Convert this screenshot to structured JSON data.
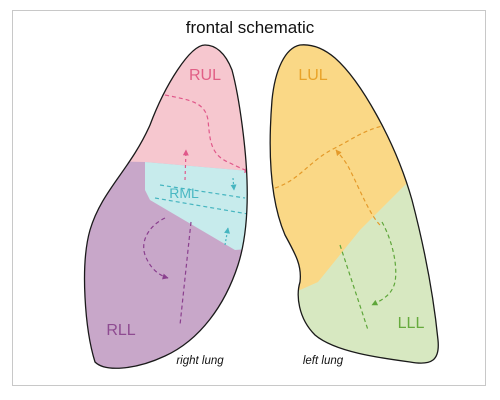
{
  "title": "frontal schematic",
  "lobes": {
    "rul": {
      "label": "RUL",
      "fill": "#f6c7cf",
      "text_color": "#e15f86",
      "arrow_color": "#e0588a"
    },
    "rml": {
      "label": "RML",
      "fill": "#c7ebec",
      "text_color": "#4ab8c3",
      "arrow_color": "#46b5c0"
    },
    "rll": {
      "label": "RLL",
      "fill": "#c8a7c9",
      "text_color": "#8e4b91",
      "arrow_color": "#8a3f8e"
    },
    "lul": {
      "label": "LUL",
      "fill": "#fad886",
      "text_color": "#e8a32a",
      "arrow_color": "#e49a2a"
    },
    "lll": {
      "label": "LLL",
      "fill": "#d7e8c1",
      "text_color": "#66aa3d",
      "arrow_color": "#5ea63a"
    }
  },
  "side_labels": {
    "right": "right lung",
    "left": "left lung"
  },
  "outline_color": "#1a1a1a"
}
